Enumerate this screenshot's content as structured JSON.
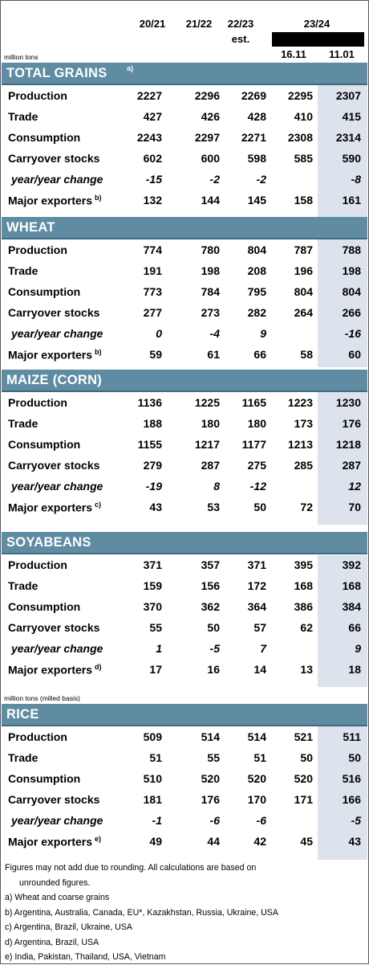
{
  "header": {
    "col1": "20/21",
    "col2": "21/22",
    "col3": "22/23",
    "col3_sub": "est.",
    "col45": "23/24",
    "col4_date": "16.11",
    "col5_date": "11.01",
    "unit": "million tons",
    "unit_rice": "million tons (milled basis)"
  },
  "sections": [
    {
      "title": "TOTAL GRAINS",
      "sup": "a)",
      "rows": [
        {
          "label": "Production",
          "values": [
            "2227",
            "2296",
            "2269",
            "2295",
            "2307"
          ]
        },
        {
          "label": "Trade",
          "values": [
            "427",
            "426",
            "428",
            "410",
            "415"
          ]
        },
        {
          "label": "Consumption",
          "values": [
            "2243",
            "2297",
            "2271",
            "2308",
            "2314"
          ]
        },
        {
          "label": "Carryover stocks",
          "values": [
            "602",
            "600",
            "598",
            "585",
            "590"
          ]
        },
        {
          "label": "year/year change",
          "values": [
            "-15",
            "-2",
            "-2",
            "",
            "-8"
          ]
        },
        {
          "label": "Major exporters",
          "sup": "b)",
          "values": [
            "132",
            "144",
            "145",
            "158",
            "161"
          ]
        }
      ]
    },
    {
      "title": "WHEAT",
      "sup": "",
      "rows": [
        {
          "label": "Production",
          "values": [
            "774",
            "780",
            "804",
            "787",
            "788"
          ]
        },
        {
          "label": "Trade",
          "values": [
            "191",
            "198",
            "208",
            "196",
            "198"
          ]
        },
        {
          "label": "Consumption",
          "values": [
            "773",
            "784",
            "795",
            "804",
            "804"
          ]
        },
        {
          "label": "Carryover stocks",
          "values": [
            "277",
            "273",
            "282",
            "264",
            "266"
          ]
        },
        {
          "label": "year/year change",
          "values": [
            "0",
            "-4",
            "9",
            "",
            "-16"
          ]
        },
        {
          "label": "Major exporters",
          "sup": "b)",
          "values": [
            "59",
            "61",
            "66",
            "58",
            "60"
          ]
        }
      ]
    },
    {
      "title": "MAIZE (CORN)",
      "sup": "",
      "rows": [
        {
          "label": "Production",
          "values": [
            "1136",
            "1225",
            "1165",
            "1223",
            "1230"
          ]
        },
        {
          "label": "Trade",
          "values": [
            "188",
            "180",
            "180",
            "173",
            "176"
          ]
        },
        {
          "label": "Consumption",
          "values": [
            "1155",
            "1217",
            "1177",
            "1213",
            "1218"
          ]
        },
        {
          "label": "Carryover stocks",
          "values": [
            "279",
            "287",
            "275",
            "285",
            "287"
          ]
        },
        {
          "label": "year/year change",
          "values": [
            "-19",
            "8",
            "-12",
            "",
            "12"
          ]
        },
        {
          "label": "Major exporters",
          "sup": "c)",
          "values": [
            "43",
            "53",
            "50",
            "72",
            "70"
          ]
        }
      ]
    },
    {
      "title": "SOYABEANS",
      "sup": "",
      "rows": [
        {
          "label": "Production",
          "values": [
            "371",
            "357",
            "371",
            "395",
            "392"
          ]
        },
        {
          "label": "Trade",
          "values": [
            "159",
            "156",
            "172",
            "168",
            "168"
          ]
        },
        {
          "label": "Consumption",
          "values": [
            "370",
            "362",
            "364",
            "386",
            "384"
          ]
        },
        {
          "label": "Carryover stocks",
          "values": [
            "55",
            "50",
            "57",
            "62",
            "66"
          ]
        },
        {
          "label": "year/year change",
          "values": [
            "1",
            "-5",
            "7",
            "",
            "9"
          ]
        },
        {
          "label": "Major exporters",
          "sup": "d)",
          "values": [
            "17",
            "16",
            "14",
            "13",
            "18"
          ]
        }
      ]
    },
    {
      "title": "RICE",
      "sup": "",
      "rows": [
        {
          "label": "Production",
          "values": [
            "509",
            "514",
            "514",
            "521",
            "511"
          ]
        },
        {
          "label": "Trade",
          "values": [
            "51",
            "55",
            "51",
            "50",
            "50"
          ]
        },
        {
          "label": "Consumption",
          "values": [
            "510",
            "520",
            "520",
            "520",
            "516"
          ]
        },
        {
          "label": "Carryover stocks",
          "values": [
            "181",
            "176",
            "170",
            "171",
            "166"
          ]
        },
        {
          "label": "year/year change",
          "values": [
            "-1",
            "-6",
            "-6",
            "",
            "-5"
          ]
        },
        {
          "label": "Major exporters",
          "sup": "e)",
          "values": [
            "49",
            "44",
            "42",
            "45",
            "43"
          ]
        }
      ]
    }
  ],
  "notes": [
    "Figures may not add due to rounding. All calculations are based on",
    "unrounded figures.",
    "a) Wheat and coarse grains",
    "b) Argentina, Australia, Canada, EU*, Kazakhstan, Russia, Ukraine, USA",
    "c) Argentina, Brazil, Ukraine, USA",
    "d) Argentina, Brazil, USA",
    "e) India, Pakistan, Thailand, USA, Vietnam"
  ],
  "colors": {
    "section_bg": "#5f8ca3",
    "shade": "#dde3ec"
  }
}
